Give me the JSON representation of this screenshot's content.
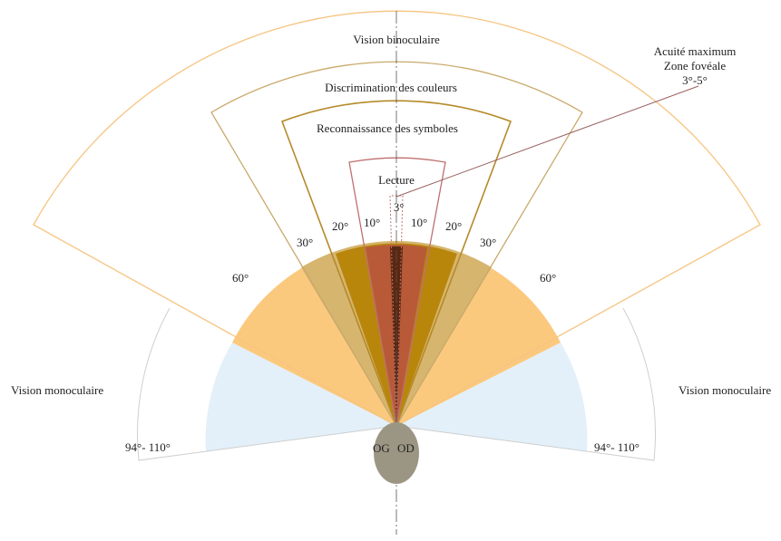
{
  "zones": {
    "binocular": "Vision binoculaire",
    "colors": "Discrimination des couleurs",
    "symbols": "Reconnaissance des symboles",
    "reading": "Lecture",
    "monocular_left": "Vision monoculaire",
    "monocular_right": "Vision monoculaire"
  },
  "acuity": {
    "line1": "Acuité maximum",
    "line2": "Zone fovéale",
    "line3": "3°-5°"
  },
  "angles": {
    "binocular_left": "60°",
    "binocular_right": "60°",
    "colors_left": "30°",
    "colors_right": "30°",
    "symbols_left": "20°",
    "symbols_right": "20°",
    "reading_left": "10°",
    "reading_right": "10°",
    "fovea": "3°",
    "monocular_left": "94°- 110°",
    "monocular_right": "94°- 110°"
  },
  "eyes": {
    "left": "OG",
    "right": "OD"
  },
  "colors": {
    "monocular_fill": "#e3f0f9",
    "binocular_fill": "#fbc97e",
    "colors_fill": "#d6b56f",
    "symbols_fill": "#b8860b",
    "reading_fill": "#b85a38",
    "fovea_fill": "#5a2710",
    "binocular_outline": "#f6c480",
    "colors_outline": "#c9a96a",
    "symbols_outline": "#b58a2a",
    "reading_outline": "#c07070",
    "eye_fill": "#9b9684"
  }
}
